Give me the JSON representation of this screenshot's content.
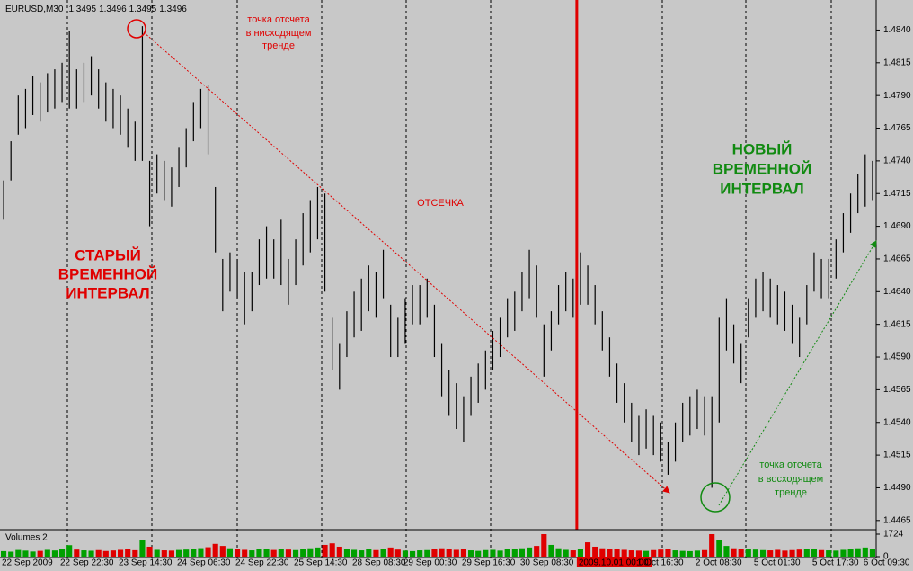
{
  "chart_data": [
    {
      "type": "ohlc",
      "title": "EURUSD,M30",
      "title_values": [
        1.3495,
        1.3496,
        1.3495,
        1.3496
      ],
      "color": "#000000",
      "categories": [
        "22 Sep 2009",
        null,
        null,
        null,
        null,
        null,
        null,
        null,
        "22 Sep 22:30",
        null,
        null,
        null,
        null,
        null,
        null,
        null,
        "23 Sep 14:30",
        null,
        null,
        null,
        null,
        null,
        null,
        null,
        "24 Sep 06:30",
        null,
        null,
        null,
        null,
        null,
        null,
        null,
        "24 Sep 22:30",
        null,
        null,
        null,
        null,
        null,
        null,
        null,
        "25 Sep 14:30",
        null,
        null,
        null,
        null,
        null,
        null,
        null,
        "28 Sep 08:30",
        null,
        null,
        null,
        null,
        null,
        null,
        "29 Sep 00:30",
        null,
        null,
        null,
        null,
        null,
        null,
        null,
        "29 Sep 16:30",
        null,
        null,
        null,
        null,
        null,
        null,
        null,
        "30 Sep 08:30",
        null,
        null,
        null,
        null,
        null,
        null,
        null,
        "2009.10.01 00:00",
        null,
        null,
        null,
        null,
        null,
        null,
        null,
        "1 Oct 16:30",
        null,
        null,
        null,
        null,
        null,
        null,
        null,
        "2 Oct 08:30",
        null,
        null,
        null,
        null,
        null,
        null,
        null,
        "5 Oct 01:30",
        null,
        null,
        null,
        null,
        null,
        null,
        null,
        "5 Oct 17:30",
        null,
        null,
        null,
        null,
        null,
        null,
        "6 Oct 09:30",
        null
      ],
      "high": [
        1.4725,
        1.4755,
        1.479,
        1.4795,
        1.4805,
        1.48,
        1.4807,
        1.481,
        1.4815,
        1.4839,
        1.481,
        1.4815,
        1.482,
        1.481,
        1.48,
        1.4795,
        1.479,
        1.478,
        1.477,
        1.4843,
        1.474,
        1.4745,
        1.474,
        1.4735,
        1.475,
        1.4765,
        1.4785,
        1.4795,
        1.4798,
        1.472,
        1.4665,
        1.467,
        1.4665,
        1.4655,
        1.4655,
        1.468,
        1.469,
        1.468,
        1.4695,
        1.4665,
        1.468,
        1.47,
        1.471,
        1.472,
        1.4715,
        1.462,
        1.46,
        1.4625,
        1.464,
        1.465,
        1.466,
        1.4655,
        1.4672,
        1.463,
        1.462,
        1.4635,
        1.4645,
        1.4645,
        1.465,
        1.463,
        1.46,
        1.458,
        1.457,
        1.456,
        1.4575,
        1.4585,
        1.4595,
        1.461,
        1.462,
        1.4635,
        1.464,
        1.4655,
        1.4672,
        1.466,
        1.4615,
        1.4625,
        1.4645,
        1.4655,
        1.465,
        1.467,
        1.466,
        1.4645,
        1.4625,
        1.4605,
        1.4585,
        1.457,
        1.4555,
        1.4545,
        1.455,
        1.4545,
        1.454,
        1.4525,
        1.454,
        1.4555,
        1.456,
        1.4565,
        1.456,
        1.456,
        1.462,
        1.4635,
        1.4615,
        1.46,
        1.4635,
        1.465,
        1.4655,
        1.465,
        1.4645,
        1.464,
        1.463,
        1.462,
        1.4645,
        1.467,
        1.4665,
        1.4665,
        1.468,
        1.47,
        1.4715,
        1.473,
        1.4745,
        1.474
      ],
      "low": [
        1.4695,
        1.4725,
        1.476,
        1.4765,
        1.4775,
        1.477,
        1.4777,
        1.478,
        1.4785,
        1.478,
        1.478,
        1.4785,
        1.479,
        1.478,
        1.477,
        1.4765,
        1.476,
        1.475,
        1.474,
        1.474,
        1.469,
        1.4715,
        1.471,
        1.4705,
        1.472,
        1.4735,
        1.4755,
        1.4765,
        1.4745,
        1.467,
        1.4625,
        1.464,
        1.4635,
        1.4615,
        1.4625,
        1.4645,
        1.465,
        1.465,
        1.4645,
        1.463,
        1.4645,
        1.466,
        1.467,
        1.468,
        1.464,
        1.458,
        1.4565,
        1.459,
        1.4605,
        1.461,
        1.4625,
        1.462,
        1.4635,
        1.459,
        1.459,
        1.46,
        1.4615,
        1.4615,
        1.462,
        1.459,
        1.456,
        1.4545,
        1.4535,
        1.4525,
        1.4545,
        1.4555,
        1.4565,
        1.458,
        1.459,
        1.4605,
        1.461,
        1.4625,
        1.4635,
        1.462,
        1.4575,
        1.4595,
        1.4615,
        1.4625,
        1.462,
        1.463,
        1.463,
        1.4615,
        1.4595,
        1.4575,
        1.4555,
        1.454,
        1.4525,
        1.4515,
        1.452,
        1.4515,
        1.451,
        1.45,
        1.451,
        1.4525,
        1.453,
        1.4535,
        1.453,
        1.449,
        1.454,
        1.4595,
        1.4585,
        1.457,
        1.4605,
        1.462,
        1.4625,
        1.462,
        1.4615,
        1.461,
        1.46,
        1.459,
        1.4615,
        1.464,
        1.4635,
        1.4635,
        1.465,
        1.467,
        1.4685,
        1.47,
        1.4705,
        1.471
      ],
      "ylim": [
        1.4458,
        1.4863
      ],
      "yticks": [
        {
          "value": 1.484,
          "label": "1.4840"
        },
        {
          "value": 1.4815,
          "label": "1.4815"
        },
        {
          "value": 1.479,
          "label": "1.4790"
        },
        {
          "value": 1.4765,
          "label": "1.4765"
        },
        {
          "value": 1.474,
          "label": "1.4740"
        },
        {
          "value": 1.4715,
          "label": "1.4715"
        },
        {
          "value": 1.469,
          "label": "1.4690"
        },
        {
          "value": 1.4665,
          "label": "1.4665"
        },
        {
          "value": 1.464,
          "label": "1.4640"
        },
        {
          "value": 1.4615,
          "label": "1.4615"
        },
        {
          "value": 1.459,
          "label": "1.4590"
        },
        {
          "value": 1.4565,
          "label": "1.4565"
        },
        {
          "value": 1.454,
          "label": "1.4540"
        },
        {
          "value": 1.4515,
          "label": "1.4515"
        },
        {
          "value": 1.449,
          "label": "1.4490"
        },
        {
          "value": 1.4465,
          "label": "1.4465"
        }
      ],
      "annotations": {
        "old_interval": [
          "СТАРЫЙ",
          "ВРЕМЕННОЙ",
          "ИНТЕРВАЛ"
        ],
        "new_interval": [
          "НОВЫЙ",
          "ВРЕМЕННОЙ",
          "ИНТЕРВАЛ"
        ],
        "cutoff": "ОТСЕЧКА",
        "down_point": [
          "точка отсчета",
          "в нисходящем",
          "тренде"
        ],
        "up_point": [
          "точка отсчета",
          "в восходящем",
          "тренде"
        ]
      }
    },
    {
      "type": "volume",
      "title": "Volumes 2",
      "values": [
        420,
        380,
        510,
        460,
        390,
        440,
        520,
        470,
        610,
        880,
        540,
        480,
        450,
        500,
        430,
        470,
        520,
        560,
        490,
        1250,
        760,
        520,
        480,
        460,
        510,
        540,
        600,
        650,
        720,
        980,
        820,
        640,
        560,
        520,
        480,
        600,
        580,
        510,
        620,
        540,
        500,
        560,
        640,
        700,
        900,
        1020,
        760,
        580,
        520,
        480,
        560,
        500,
        620,
        700,
        540,
        460,
        420,
        480,
        500,
        560,
        640,
        580,
        520,
        560,
        480,
        440,
        500,
        520,
        460,
        600,
        560,
        640,
        700,
        820,
        1724,
        900,
        640,
        520,
        480,
        560,
        1100,
        760,
        640,
        600,
        560,
        520,
        480,
        460,
        440,
        500,
        540,
        600,
        480,
        440,
        420,
        460,
        500,
        1724,
        1300,
        820,
        640,
        560,
        600,
        540,
        500,
        480,
        520,
        460,
        500,
        540,
        580,
        560,
        500,
        480,
        460,
        520,
        580,
        640,
        700,
        620
      ],
      "ylim": [
        0,
        1724
      ],
      "yticks": [
        1724,
        0
      ]
    }
  ]
}
